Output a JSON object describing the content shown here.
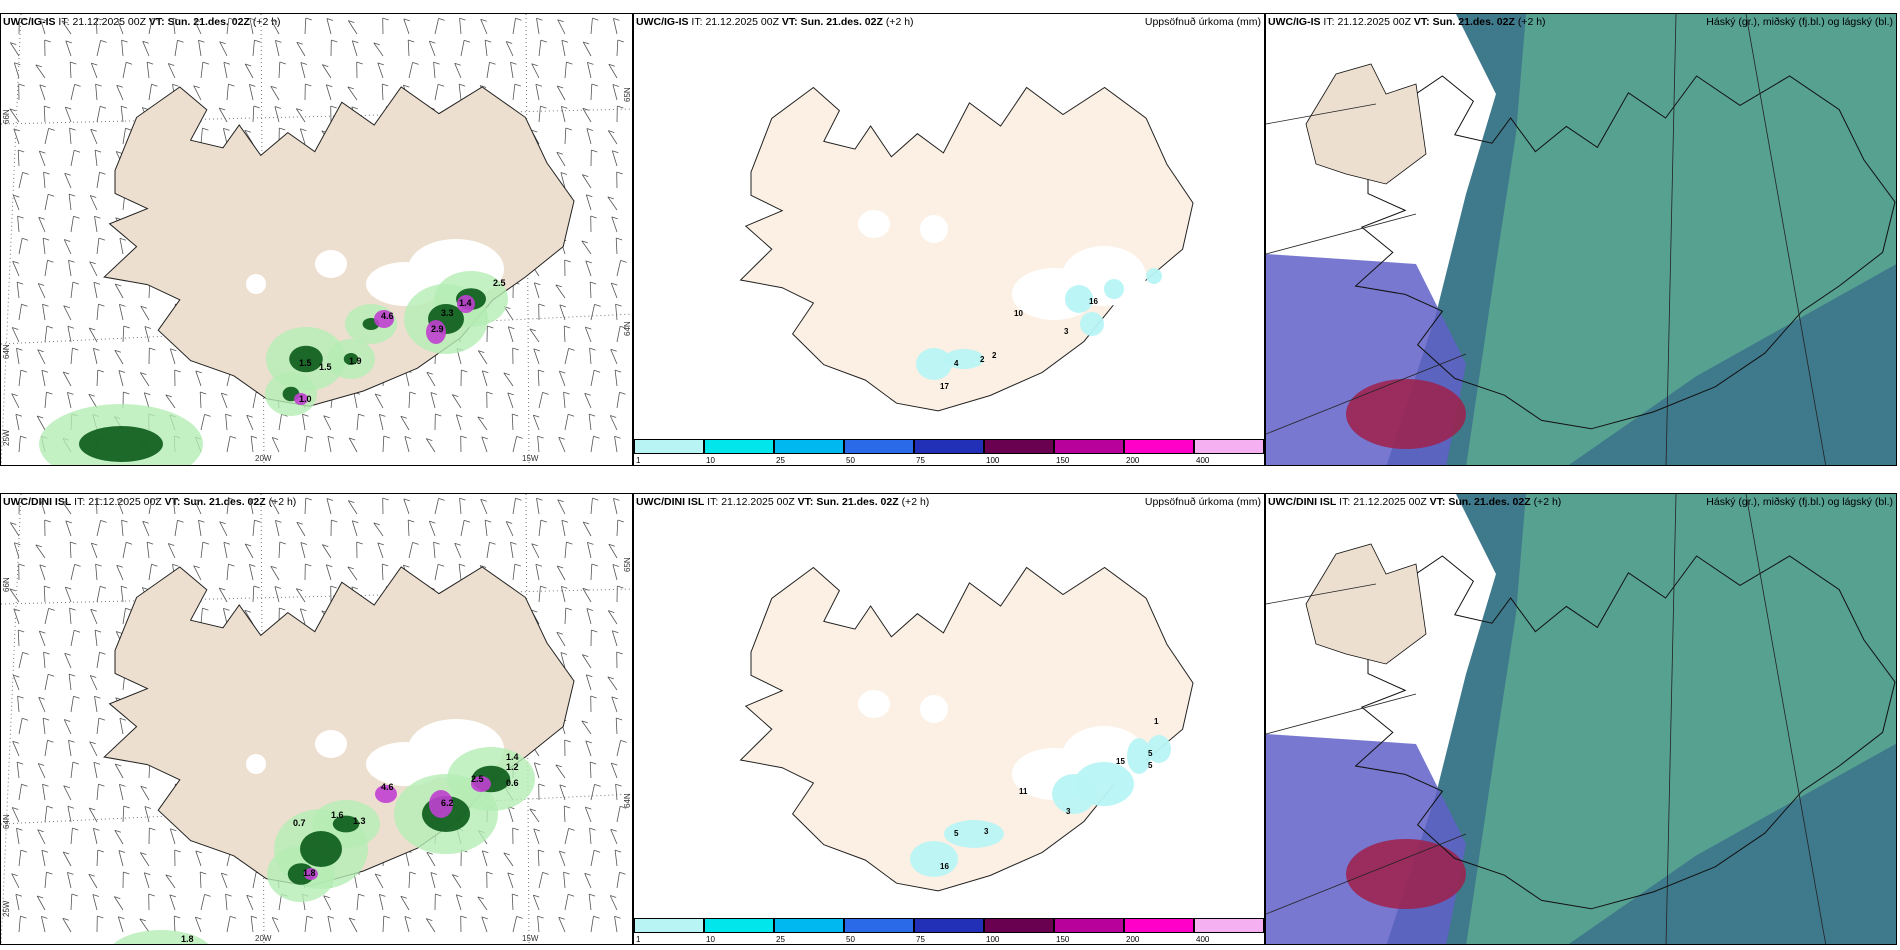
{
  "rows": [
    {
      "model": "UWC/IG-IS",
      "it_label": "IT:",
      "it_value": "21.12.2025 00Z",
      "vt_label": "VT:",
      "vt_value": "Sun. 21.des. 02Z",
      "lead": "(+2 h)",
      "wind_panel": {
        "axis_labels": [
          "66N",
          "64N",
          "65N",
          "64N",
          "25W",
          "20W",
          "15W"
        ],
        "numbers": [
          "1.5",
          "1.5",
          "1.9",
          "1.0",
          "4.6",
          "2.9",
          "3.3",
          "1.4",
          "2.5"
        ]
      },
      "precip_panel": {
        "title": "Uppsöfnuð úrkoma (mm)",
        "numbers": [
          "4",
          "2",
          "2",
          "17",
          "10",
          "16",
          "3"
        ]
      },
      "cloud_panel": {
        "title": "Háský (gr.), miðský (fj.bl.) og lágský (bl.)"
      }
    },
    {
      "model": "UWC/DINI ISL",
      "it_label": "IT:",
      "it_value": "21.12.2025 00Z",
      "vt_label": "VT:",
      "vt_value": "Sun. 21.des. 02Z",
      "lead": "(+2 h)",
      "wind_panel": {
        "axis_labels": [
          "66N",
          "64N",
          "65N",
          "64N",
          "25W",
          "20W",
          "15W"
        ],
        "numbers": [
          "0.7",
          "1.6",
          "1.3",
          "4.6",
          "6.2",
          "2.5",
          "1.2",
          "0.6",
          "1.4",
          "1.8",
          "1.8"
        ]
      },
      "precip_panel": {
        "title": "Uppsöfnuð úrkoma (mm)",
        "numbers": [
          "5",
          "3",
          "11",
          "16",
          "3",
          "15",
          "5",
          "5",
          "1"
        ]
      },
      "cloud_panel": {
        "title": "Háský (gr.), miðský (fj.bl.) og lágský (bl.)"
      }
    }
  ],
  "precip_legend": {
    "labels": [
      "1",
      "10",
      "25",
      "50",
      "75",
      "100",
      "150",
      "200",
      "400"
    ],
    "colors": [
      "#b8f4f4",
      "#00e6ea",
      "#00b8f0",
      "#2a6ae8",
      "#2230b8",
      "#6a0050",
      "#b8009a",
      "#ff00c8",
      "#f4b0f0"
    ]
  },
  "colors": {
    "land": "#eddfcf",
    "land_light": "#fcf0e4",
    "precip_green_dark": "#0a5a1a",
    "precip_green_light": "#b4eeb4",
    "precip_magenta": "#c040d0",
    "cloud_high": "#5aa890",
    "cloud_mid": "#2a6a80",
    "cloud_low": "#6060c8",
    "cloud_red": "#a0204a"
  }
}
